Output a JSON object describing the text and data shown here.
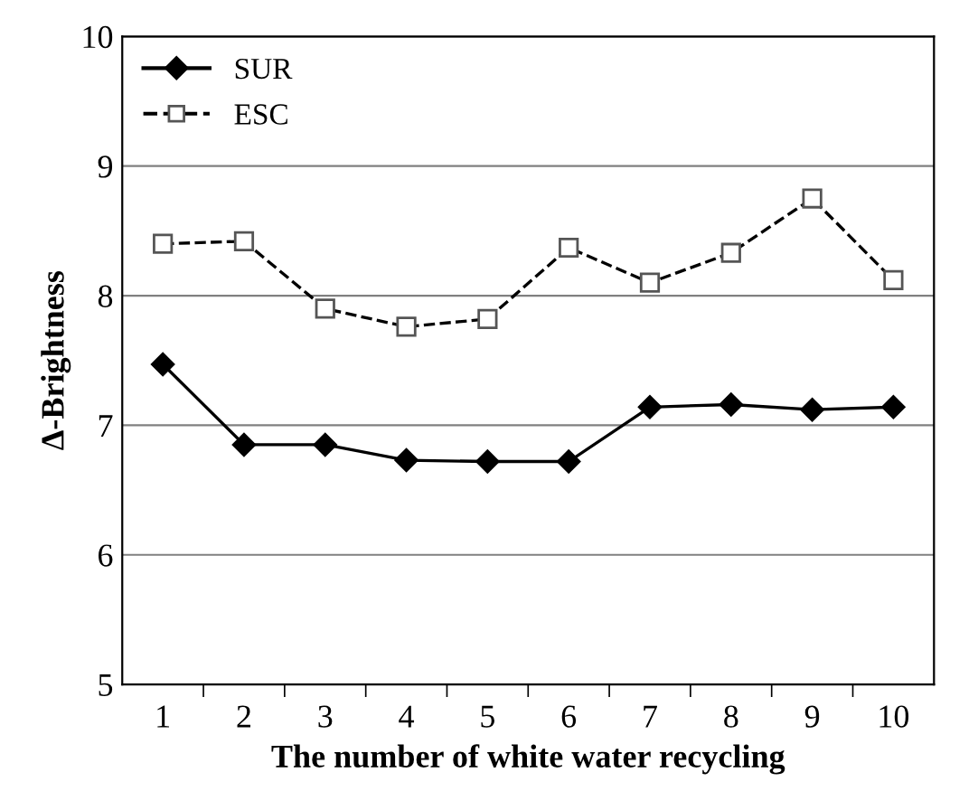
{
  "chart_data": {
    "type": "line",
    "xlabel": "The number of white water recycling",
    "ylabel": "Δ-Brightness",
    "categories": [
      "1",
      "2",
      "3",
      "4",
      "5",
      "6",
      "7",
      "8",
      "9",
      "10"
    ],
    "series": [
      {
        "name": "SUR",
        "color": "#000000",
        "marker": "diamond",
        "line_style": "solid",
        "values": [
          7.47,
          6.85,
          6.85,
          6.73,
          6.72,
          6.72,
          7.14,
          7.16,
          7.12,
          7.14
        ]
      },
      {
        "name": "ESC",
        "color": "#000000",
        "marker": "square",
        "line_style": "dashed",
        "values": [
          8.4,
          8.42,
          7.9,
          7.76,
          7.82,
          8.37,
          8.1,
          8.33,
          8.75,
          8.12
        ]
      }
    ],
    "ylim": [
      5,
      10
    ],
    "yticks": [
      5,
      6,
      7,
      8,
      9,
      10
    ],
    "grid": "y",
    "legend": "top left"
  }
}
